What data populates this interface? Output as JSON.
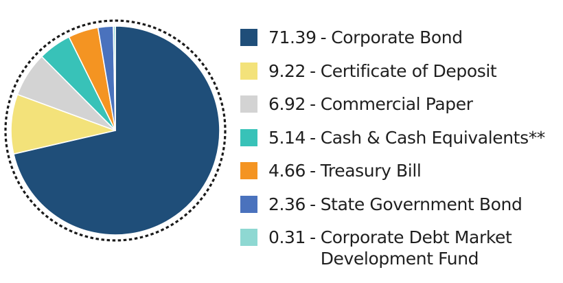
{
  "chart_data": {
    "type": "pie",
    "title": "",
    "unit": "%",
    "start_angle_deg": 0,
    "direction": "clockwise",
    "border": "dotted",
    "slices": [
      {
        "value": 71.39,
        "display": "71.39",
        "label": "Corporate Bond",
        "color": "#1f4e79"
      },
      {
        "value": 9.22,
        "display": "9.22",
        "label": "Certificate of Deposit",
        "color": "#f3e27a"
      },
      {
        "value": 6.92,
        "display": "6.92",
        "label": "Commercial Paper",
        "color": "#d3d3d3"
      },
      {
        "value": 5.14,
        "display": "5.14",
        "label": "Cash & Cash Equivalents**",
        "color": "#38c2b8"
      },
      {
        "value": 4.66,
        "display": "4.66",
        "label": "Treasury Bill",
        "color": "#f49422"
      },
      {
        "value": 2.36,
        "display": "2.36",
        "label": "State Government Bond",
        "color": "#4a72bd"
      },
      {
        "value": 0.31,
        "display": "0.31",
        "label": "Corporate Debt Market Development Fund",
        "color": "#8ed8d2"
      }
    ],
    "legend": {
      "placement": "right",
      "separator": "-"
    }
  }
}
